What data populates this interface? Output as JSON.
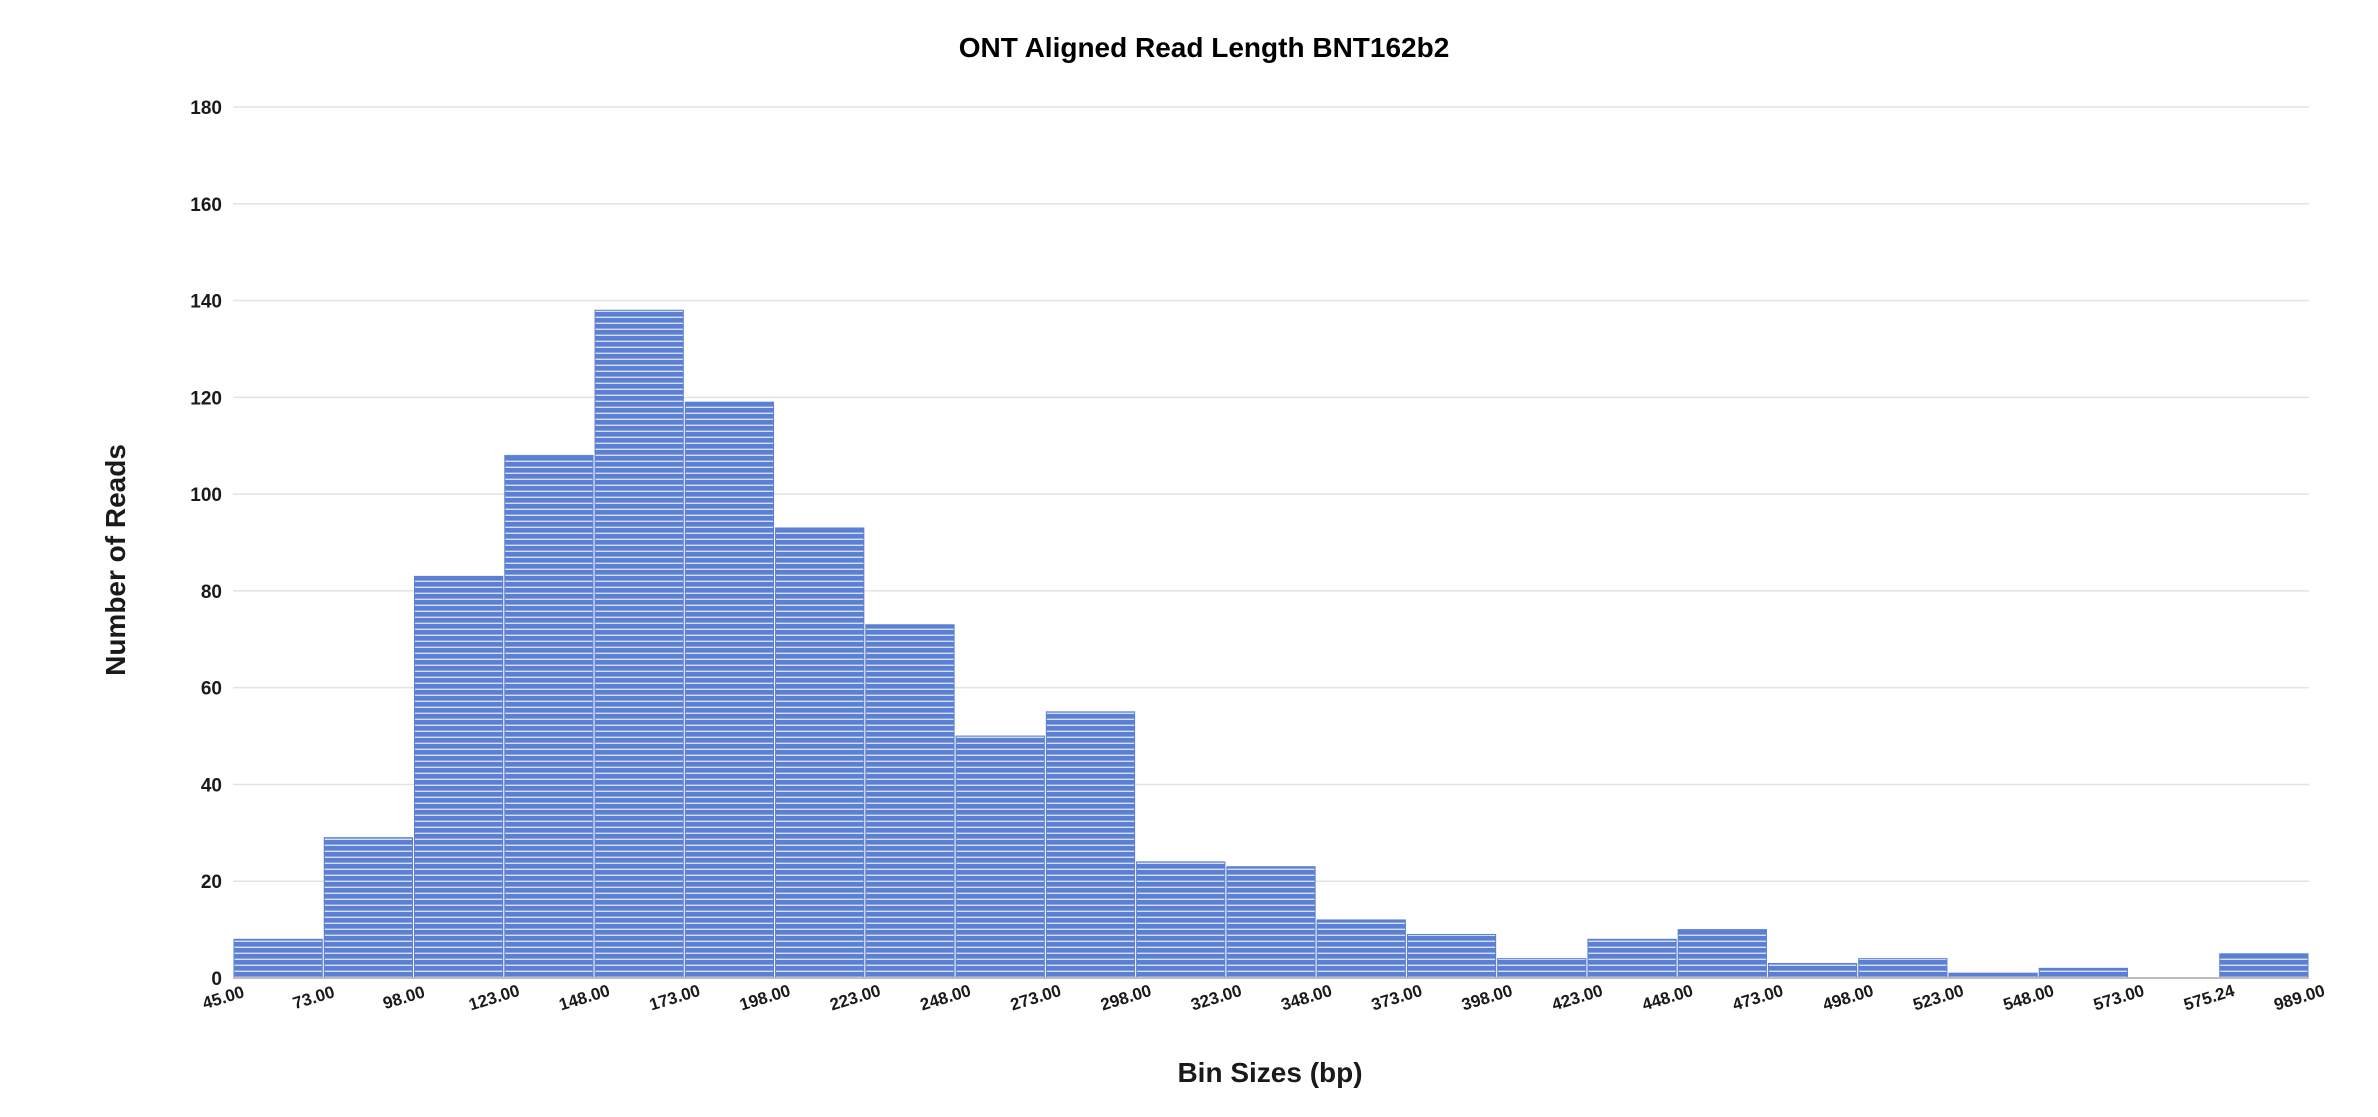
{
  "chart_data": {
    "type": "bar",
    "title": "ONT Aligned Read Length BNT162b2",
    "xlabel": "Bin Sizes (bp)",
    "ylabel": "Number of Reads",
    "ylim": [
      0,
      180
    ],
    "yticks": [
      0,
      20,
      40,
      60,
      80,
      100,
      120,
      140,
      160,
      180
    ],
    "bin_edges": [
      "45.00",
      "73.00",
      "98.00",
      "123.00",
      "148.00",
      "173.00",
      "198.00",
      "223.00",
      "248.00",
      "273.00",
      "298.00",
      "323.00",
      "348.00",
      "373.00",
      "398.00",
      "423.00",
      "448.00",
      "473.00",
      "498.00",
      "523.00",
      "548.00",
      "573.00",
      "575.24",
      "989.00"
    ],
    "values": [
      8,
      29,
      83,
      108,
      138,
      119,
      93,
      73,
      50,
      55,
      24,
      23,
      12,
      9,
      4,
      8,
      10,
      3,
      4,
      1,
      2,
      0,
      5
    ],
    "bar_color": "#5b7fd4",
    "grid": true,
    "legend": "none"
  }
}
